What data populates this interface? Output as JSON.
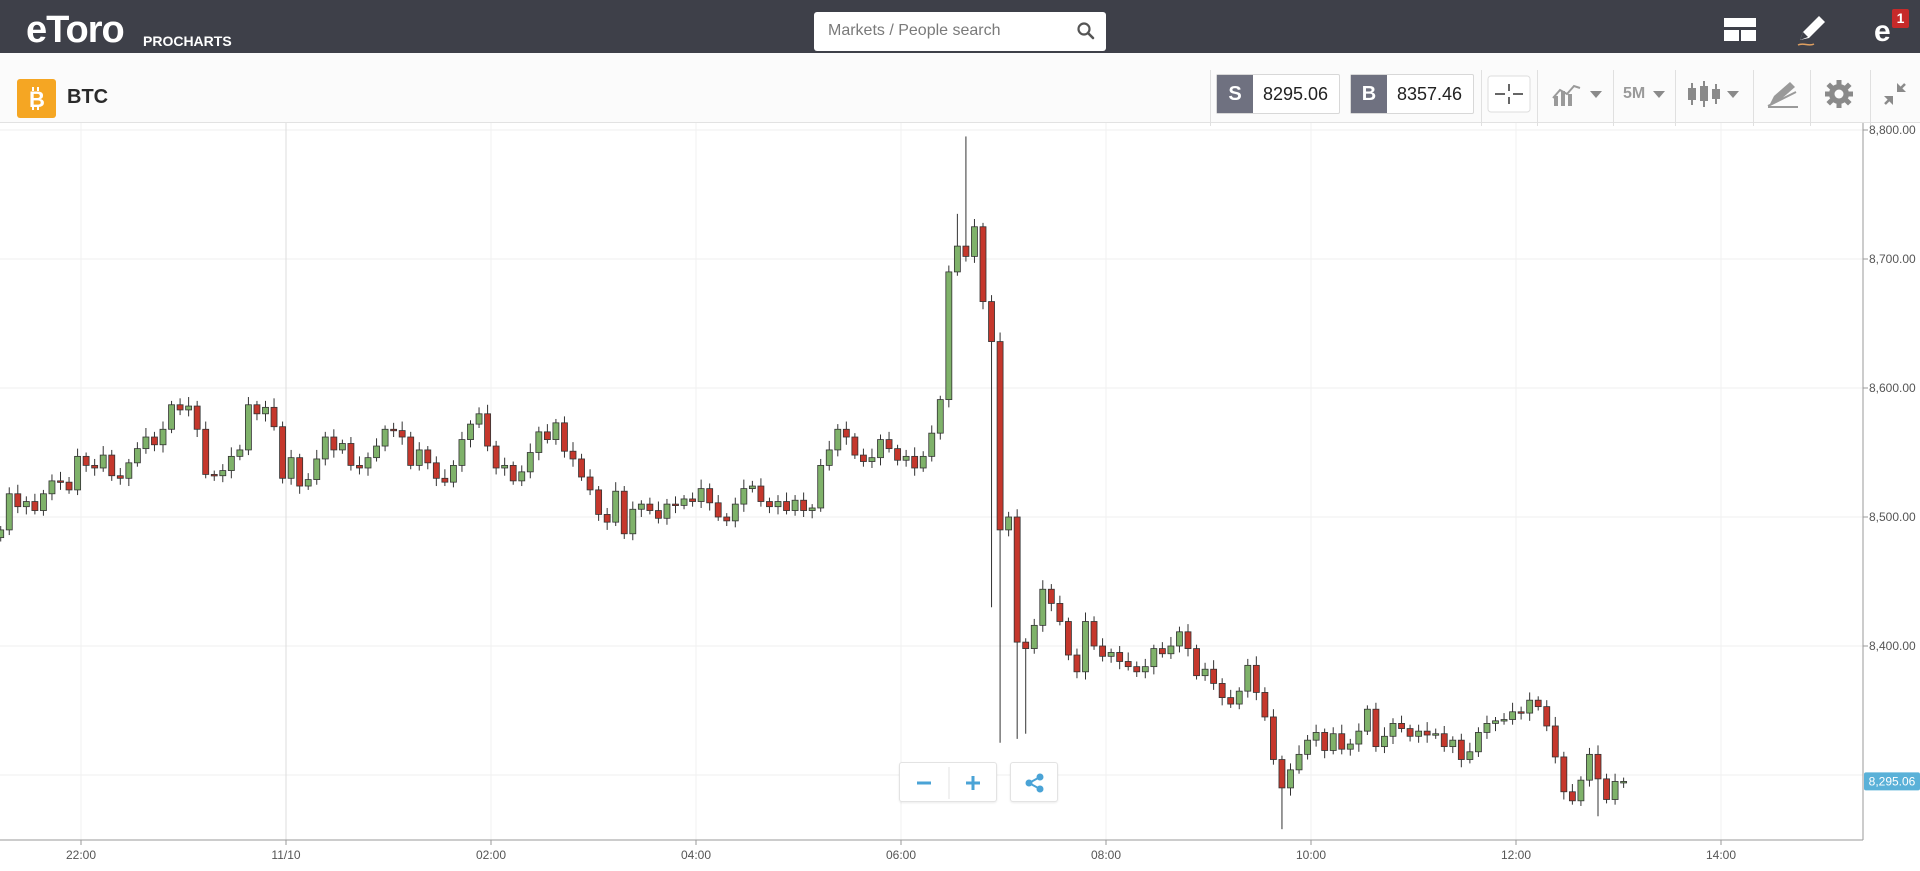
{
  "header": {
    "logo_text": "eToro",
    "logo_sub": "PROCHARTS",
    "search_placeholder": "Markets / People search",
    "notification_count": "1"
  },
  "instrument": {
    "symbol": "BTC",
    "sell_label": "S",
    "sell_price": "8295.06",
    "buy_label": "B",
    "buy_price": "8357.46",
    "timeframe": "5M"
  },
  "colors": {
    "topbar": "#3e4049",
    "btc_orange": "#f5a623",
    "up_candle": "#7fb26a",
    "down_candle": "#c5372c",
    "price_tag": "#5ab1d8"
  },
  "chart_data": {
    "type": "candlestick",
    "y_ticks": [
      "8,800.00",
      "8,700.00",
      "8,600.00",
      "8,500.00",
      "8,400.00"
    ],
    "y_values": [
      8800,
      8700,
      8600,
      8500,
      8400
    ],
    "ylim": [
      8250,
      8800
    ],
    "x_ticks": [
      "22:00",
      "11/10",
      "02:00",
      "04:00",
      "06:00",
      "08:00",
      "10:00",
      "12:00",
      "14:00"
    ],
    "x_tick_minutes": [
      0,
      120,
      240,
      360,
      480,
      600,
      720,
      840,
      960
    ],
    "candle_interval_minutes": 5,
    "start_minute": -47,
    "current_price_label": "8,295.06",
    "current_price": 8295.06,
    "closes": [
      8490,
      8518,
      8508,
      8512,
      8505,
      8518,
      8528,
      8527,
      8521,
      8547,
      8540,
      8538,
      8548,
      8532,
      8530,
      8542,
      8553,
      8562,
      8556,
      8568,
      8587,
      8583,
      8586,
      8568,
      8533,
      8532,
      8536,
      8547,
      8552,
      8587,
      8580,
      8585,
      8570,
      8530,
      8546,
      8524,
      8529,
      8545,
      8562,
      8552,
      8557,
      8540,
      8538,
      8546,
      8555,
      8568,
      8567,
      8562,
      8540,
      8552,
      8542,
      8530,
      8527,
      8540,
      8560,
      8572,
      8580,
      8555,
      8538,
      8540,
      8528,
      8535,
      8550,
      8566,
      8560,
      8573,
      8551,
      8545,
      8531,
      8521,
      8502,
      8496,
      8520,
      8487,
      8506,
      8510,
      8505,
      8499,
      8510,
      8509,
      8514,
      8512,
      8522,
      8511,
      8500,
      8497,
      8510,
      8522,
      8524,
      8512,
      8508,
      8512,
      8505,
      8513,
      8505,
      8507,
      8540,
      8552,
      8568,
      8562,
      8548,
      8543,
      8546,
      8560,
      8553,
      8544,
      8547,
      8538,
      8547,
      8565,
      8591,
      8690,
      8710,
      8702,
      8725,
      8667,
      8636,
      8490,
      8500,
      8403,
      8398,
      8416,
      8444,
      8433,
      8419,
      8393,
      8380,
      8419,
      8400,
      8392,
      8395,
      8388,
      8384,
      8380,
      8384,
      8398,
      8394,
      8400,
      8411,
      8398,
      8377,
      8382,
      8371,
      8360,
      8355,
      8365,
      8385,
      8364,
      8345,
      8312,
      8290,
      8304,
      8316,
      8327,
      8333,
      8319,
      8332,
      8320,
      8324,
      8334,
      8351,
      8322,
      8330,
      8340,
      8336,
      8330,
      8334,
      8331,
      8332,
      8322,
      8327,
      8312,
      8318,
      8333,
      8340,
      8342,
      8343,
      8349,
      8348,
      8358,
      8353,
      8338,
      8314,
      8287,
      8280,
      8296,
      8316,
      8297,
      8281,
      8295,
      8295
    ]
  }
}
